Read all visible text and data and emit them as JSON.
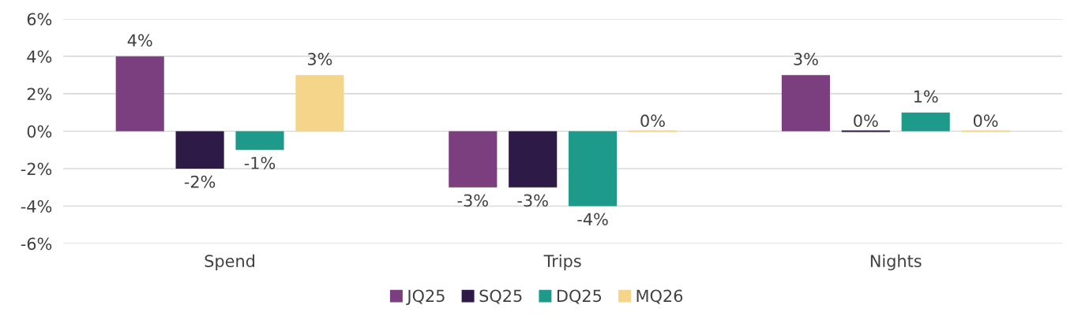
{
  "chart_data": {
    "type": "bar",
    "categories": [
      "Spend",
      "Trips",
      "Nights"
    ],
    "series": [
      {
        "name": "JQ25",
        "color": "#7b3f80",
        "values": [
          4,
          -3,
          3
        ],
        "value_labels": [
          "4%",
          "-3%",
          "3%"
        ]
      },
      {
        "name": "SQ25",
        "color": "#2e1a47",
        "values": [
          -2,
          -3,
          0
        ],
        "value_labels": [
          "-2%",
          "-3%",
          "0%"
        ]
      },
      {
        "name": "DQ25",
        "color": "#1e9a8a",
        "values": [
          -1,
          -4,
          1
        ],
        "value_labels": [
          "-1%",
          "-4%",
          "1%"
        ]
      },
      {
        "name": "MQ26",
        "color": "#f5d58a",
        "values": [
          3,
          0,
          0
        ],
        "value_labels": [
          "3%",
          "0%",
          "0%"
        ]
      }
    ],
    "ylim": [
      -6,
      6
    ],
    "yticks": [
      {
        "value": -6,
        "label": "-6%"
      },
      {
        "value": -4,
        "label": "-4%"
      },
      {
        "value": -2,
        "label": "-2%"
      },
      {
        "value": 0,
        "label": "0%"
      },
      {
        "value": 2,
        "label": "2%"
      },
      {
        "value": 4,
        "label": "4%"
      },
      {
        "value": 6,
        "label": "6%"
      }
    ],
    "grid": "y",
    "legend": "bottom"
  }
}
